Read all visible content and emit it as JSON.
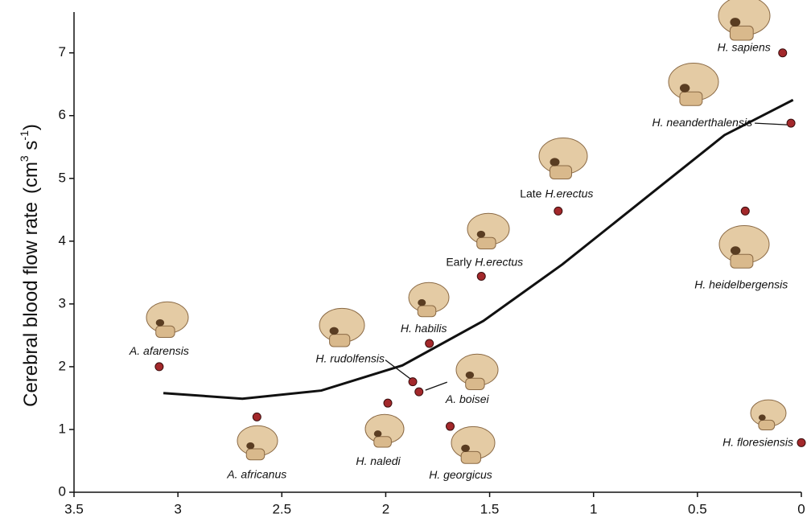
{
  "chart_data": {
    "type": "scatter",
    "y_label": "Cerebral blood flow rate",
    "y_label_unit": [
      "(cm",
      "3",
      " s",
      "-1",
      ")"
    ],
    "xlim": [
      3.5,
      0
    ],
    "ylim": [
      0,
      7.65
    ],
    "xticks": [
      3.5,
      3,
      2.5,
      2,
      1.5,
      1,
      0.5,
      0
    ],
    "yticks": [
      0,
      1,
      2,
      3,
      4,
      5,
      6,
      7
    ],
    "series": [
      {
        "color": "#a3282b",
        "x": [
          3.09,
          2.62,
          1.99,
          1.69,
          1.87,
          1.84,
          1.79,
          1.54,
          1.17,
          0.27,
          0.05,
          0.09,
          0.0
        ],
        "values": [
          2.0,
          1.2,
          1.42,
          1.05,
          1.76,
          1.6,
          2.37,
          3.44,
          4.48,
          4.48,
          5.88,
          7.0,
          0.79
        ],
        "annotations": [
          {
            "text": "A. afarensis"
          },
          {
            "text": "A. africanus"
          },
          {
            "text": "H. naledi"
          },
          {
            "text": "H. georgicus"
          },
          {
            "text": "H. rudolfensis"
          },
          {
            "text": "A. boisei"
          },
          {
            "text": "H. habilis"
          },
          {
            "prefix": "Early",
            "text": "H.erectus"
          },
          {
            "prefix": "Late",
            "text": "H.erectus"
          },
          {
            "text": "H. heidelbergensis"
          },
          {
            "text": "H. neanderthalensis"
          },
          {
            "text": "H. sapiens"
          },
          {
            "text": "H. floresiensis"
          }
        ]
      },
      {
        "type": "line",
        "color": "#111111",
        "x": [
          3.07,
          2.69,
          2.31,
          1.92,
          1.53,
          1.15,
          0.76,
          0.37,
          0.04
        ],
        "values": [
          1.58,
          1.49,
          1.62,
          2.02,
          2.73,
          3.63,
          4.66,
          5.69,
          6.25
        ]
      }
    ]
  }
}
